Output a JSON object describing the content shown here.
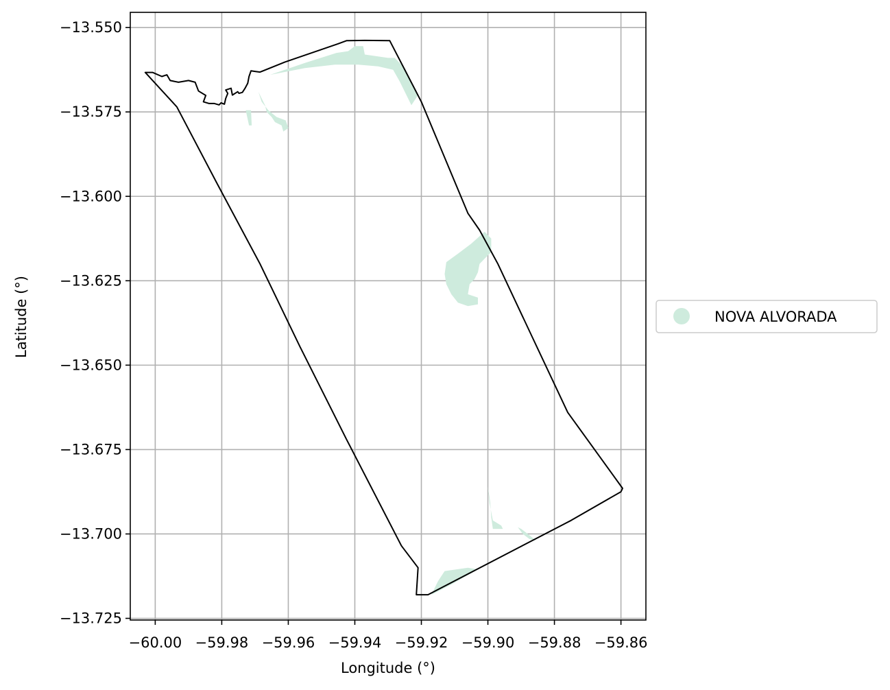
{
  "chart_data": {
    "type": "map",
    "title": "",
    "xlabel": "Longitude (°)",
    "ylabel": "Latitude (°)",
    "xlim": [
      -60.0075,
      -59.8525
    ],
    "ylim": [
      -13.7255,
      -13.5455
    ],
    "x_ticks": [
      -60.0,
      -59.98,
      -59.96,
      -59.94,
      -59.92,
      -59.9,
      -59.88,
      -59.86
    ],
    "x_tick_labels": [
      "−60.00",
      "−59.98",
      "−59.96",
      "−59.94",
      "−59.92",
      "−59.90",
      "−59.88",
      "−59.86"
    ],
    "y_ticks": [
      -13.55,
      -13.575,
      -13.6,
      -13.625,
      -13.65,
      -13.675,
      -13.7,
      -13.725
    ],
    "y_tick_labels": [
      "−13.550",
      "−13.575",
      "−13.600",
      "−13.625",
      "−13.650",
      "−13.675",
      "−13.700",
      "−13.725"
    ],
    "grid": true,
    "legend": {
      "placement": "center-right-outside",
      "entries": [
        {
          "name": "NOVA ALVORADA",
          "color": "#ceebdd",
          "marker": "circle"
        }
      ]
    },
    "boundary": {
      "stroke": "#000000",
      "coords": [
        [
          -60.003,
          -13.5633
        ],
        [
          -60.0008,
          -13.5633
        ],
        [
          -59.998,
          -13.5645
        ],
        [
          -59.9965,
          -13.564
        ],
        [
          -59.9955,
          -13.5657
        ],
        [
          -59.993,
          -13.5662
        ],
        [
          -59.99,
          -13.5657
        ],
        [
          -59.988,
          -13.5662
        ],
        [
          -59.987,
          -13.5688
        ],
        [
          -59.9848,
          -13.5701
        ],
        [
          -59.9855,
          -13.572
        ],
        [
          -59.9838,
          -13.5725
        ],
        [
          -59.9822,
          -13.5725
        ],
        [
          -59.9808,
          -13.5729
        ],
        [
          -59.9802,
          -13.5723
        ],
        [
          -59.9792,
          -13.5727
        ],
        [
          -59.9788,
          -13.571
        ],
        [
          -59.9782,
          -13.5695
        ],
        [
          -59.9788,
          -13.5685
        ],
        [
          -59.9772,
          -13.568
        ],
        [
          -59.9768,
          -13.57
        ],
        [
          -59.9752,
          -13.569
        ],
        [
          -59.9748,
          -13.5695
        ],
        [
          -59.9738,
          -13.5692
        ],
        [
          -59.973,
          -13.568
        ],
        [
          -59.9722,
          -13.5665
        ],
        [
          -59.9718,
          -13.5645
        ],
        [
          -59.9712,
          -13.5628
        ],
        [
          -59.97,
          -13.563
        ],
        [
          -59.9685,
          -13.5632
        ],
        [
          -59.961,
          -13.5602
        ],
        [
          -59.945,
          -13.5548
        ],
        [
          -59.9425,
          -13.5539
        ],
        [
          -59.937,
          -13.5538
        ],
        [
          -59.9295,
          -13.5539
        ],
        [
          -59.92,
          -13.572
        ],
        [
          -59.906,
          -13.605
        ],
        [
          -59.9025,
          -13.61
        ],
        [
          -59.897,
          -13.62
        ],
        [
          -59.8865,
          -13.642
        ],
        [
          -59.876,
          -13.664
        ],
        [
          -59.8595,
          -13.6865
        ],
        [
          -59.86,
          -13.6875
        ],
        [
          -59.875,
          -13.696
        ],
        [
          -59.918,
          -13.718
        ],
        [
          -59.9215,
          -13.718
        ],
        [
          -59.921,
          -13.71
        ],
        [
          -59.926,
          -13.7035
        ],
        [
          -59.9425,
          -13.672
        ],
        [
          -59.9565,
          -13.6445
        ],
        [
          -59.9685,
          -13.62
        ],
        [
          -59.9815,
          -13.596
        ],
        [
          -59.9935,
          -13.5735
        ],
        [
          -60.003,
          -13.5633
        ]
      ]
    },
    "regions": [
      {
        "name": "NOVA ALVORADA",
        "fill": "#ceebdd",
        "coords": [
          [
            -59.9655,
            -13.564
          ],
          [
            -59.955,
            -13.5605
          ],
          [
            -59.9455,
            -13.5575
          ],
          [
            -59.942,
            -13.557
          ],
          [
            -59.94,
            -13.5555
          ],
          [
            -59.9375,
            -13.5555
          ],
          [
            -59.937,
            -13.558
          ],
          [
            -59.93,
            -13.559
          ],
          [
            -59.928,
            -13.559
          ],
          [
            -59.925,
            -13.562
          ],
          [
            -59.921,
            -13.57
          ],
          [
            -59.923,
            -13.573
          ],
          [
            -59.9265,
            -13.566
          ],
          [
            -59.9285,
            -13.5625
          ],
          [
            -59.933,
            -13.5615
          ],
          [
            -59.939,
            -13.561
          ],
          [
            -59.946,
            -13.561
          ],
          [
            -59.955,
            -13.562
          ],
          [
            -59.9655,
            -13.564
          ]
        ]
      },
      {
        "name": "NOVA ALVORADA",
        "fill": "#ceebdd",
        "coords": [
          [
            -59.969,
            -13.569
          ],
          [
            -59.968,
            -13.572
          ],
          [
            -59.966,
            -13.5745
          ],
          [
            -59.9635,
            -13.5765
          ],
          [
            -59.9608,
            -13.5775
          ],
          [
            -59.96,
            -13.5798
          ],
          [
            -59.9615,
            -13.5808
          ],
          [
            -59.962,
            -13.579
          ],
          [
            -59.964,
            -13.578
          ],
          [
            -59.965,
            -13.5765
          ],
          [
            -59.9665,
            -13.575
          ],
          [
            -59.967,
            -13.573
          ],
          [
            -59.968,
            -13.571
          ],
          [
            -59.969,
            -13.569
          ]
        ]
      },
      {
        "name": "NOVA ALVORADA",
        "fill": "#ceebdd",
        "coords": [
          [
            -59.9728,
            -13.5745
          ],
          [
            -59.9718,
            -13.579
          ],
          [
            -59.971,
            -13.579
          ],
          [
            -59.9712,
            -13.5745
          ],
          [
            -59.9728,
            -13.5745
          ]
        ]
      },
      {
        "name": "NOVA ALVORADA",
        "fill": "#ceebdd",
        "coords": [
          [
            -59.901,
            -13.6105
          ],
          [
            -59.905,
            -13.614
          ],
          [
            -59.909,
            -13.617
          ],
          [
            -59.9125,
            -13.6195
          ],
          [
            -59.913,
            -13.623
          ],
          [
            -59.9125,
            -13.626
          ],
          [
            -59.911,
            -13.629
          ],
          [
            -59.909,
            -13.6315
          ],
          [
            -59.906,
            -13.6325
          ],
          [
            -59.903,
            -13.632
          ],
          [
            -59.903,
            -13.63
          ],
          [
            -59.906,
            -13.629
          ],
          [
            -59.9055,
            -13.626
          ],
          [
            -59.904,
            -13.6245
          ],
          [
            -59.903,
            -13.6225
          ],
          [
            -59.9025,
            -13.62
          ],
          [
            -59.901,
            -13.6185
          ],
          [
            -59.899,
            -13.6165
          ],
          [
            -59.899,
            -13.6125
          ],
          [
            -59.901,
            -13.6105
          ]
        ]
      },
      {
        "name": "NOVA ALVORADA",
        "fill": "#ceebdd",
        "coords": [
          [
            -59.9,
            -13.686
          ],
          [
            -59.8995,
            -13.691
          ],
          [
            -59.8985,
            -13.696
          ],
          [
            -59.896,
            -13.6975
          ],
          [
            -59.8955,
            -13.6985
          ],
          [
            -59.8985,
            -13.6985
          ],
          [
            -59.899,
            -13.695
          ],
          [
            -59.8993,
            -13.6905
          ],
          [
            -59.9,
            -13.686
          ]
        ]
      },
      {
        "name": "NOVA ALVORADA",
        "fill": "#ceebdd",
        "coords": [
          [
            -59.891,
            -13.698
          ],
          [
            -59.8895,
            -13.7
          ],
          [
            -59.8875,
            -13.7015
          ],
          [
            -59.8855,
            -13.702
          ],
          [
            -59.888,
            -13.7
          ],
          [
            -59.89,
            -13.6985
          ],
          [
            -59.891,
            -13.698
          ]
        ]
      },
      {
        "name": "NOVA ALVORADA",
        "fill": "#ceebdd",
        "coords": [
          [
            -59.917,
            -13.718
          ],
          [
            -59.915,
            -13.714
          ],
          [
            -59.913,
            -13.711
          ],
          [
            -59.906,
            -13.71
          ],
          [
            -59.903,
            -13.7105
          ],
          [
            -59.9075,
            -13.713
          ],
          [
            -59.911,
            -13.715
          ],
          [
            -59.915,
            -13.717
          ],
          [
            -59.917,
            -13.718
          ]
        ]
      }
    ]
  }
}
